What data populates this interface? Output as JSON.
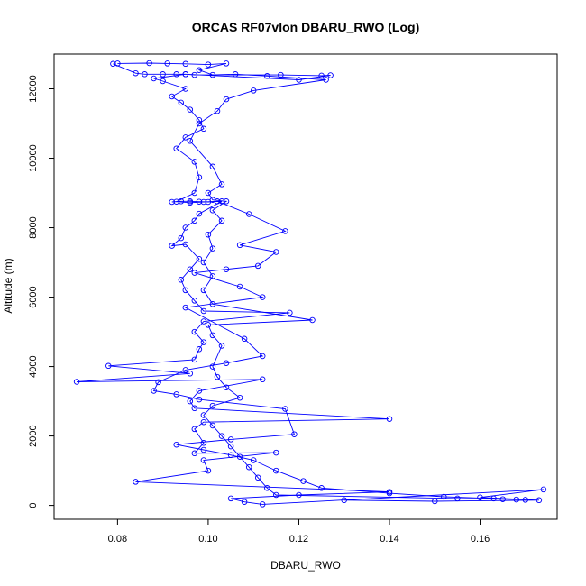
{
  "chart_data": {
    "type": "line",
    "title": "ORCAS RF07vlon DBARU_RWO (Log)",
    "xlabel": "DBARU_RWO",
    "ylabel": "Altitude (m)",
    "xlim": [
      0.066,
      0.177
    ],
    "ylim": [
      -400,
      13000
    ],
    "x_ticks": [
      "0.08",
      "0.10",
      "0.12",
      "0.14",
      "0.16"
    ],
    "y_ticks": [
      "0",
      "2000",
      "4000",
      "6000",
      "8000",
      "10000",
      "12000"
    ],
    "grid": false,
    "legend": "none",
    "marker": "open-circle",
    "series": [
      {
        "color": "#0000ff",
        "points": [
          [
            0.079,
            12720
          ],
          [
            0.084,
            12450
          ],
          [
            0.086,
            12420
          ],
          [
            0.09,
            12420
          ],
          [
            0.093,
            12420
          ],
          [
            0.095,
            12420
          ],
          [
            0.097,
            12400
          ],
          [
            0.116,
            12400
          ],
          [
            0.125,
            12380
          ],
          [
            0.127,
            12390
          ],
          [
            0.12,
            12260
          ],
          [
            0.095,
            12420
          ],
          [
            0.088,
            12300
          ],
          [
            0.09,
            12220
          ],
          [
            0.095,
            12000
          ],
          [
            0.092,
            11780
          ],
          [
            0.094,
            11600
          ],
          [
            0.096,
            11400
          ],
          [
            0.098,
            11100
          ],
          [
            0.099,
            10850
          ],
          [
            0.095,
            10600
          ],
          [
            0.093,
            10280
          ],
          [
            0.097,
            9900
          ],
          [
            0.098,
            9450
          ],
          [
            0.097,
            9000
          ],
          [
            0.093,
            8750
          ],
          [
            0.096,
            8720
          ],
          [
            0.099,
            8740
          ],
          [
            0.103,
            8760
          ],
          [
            0.098,
            8400
          ],
          [
            0.097,
            8200
          ],
          [
            0.095,
            8000
          ],
          [
            0.094,
            7700
          ],
          [
            0.092,
            7480
          ],
          [
            0.095,
            7520
          ],
          [
            0.098,
            7100
          ],
          [
            0.096,
            6800
          ],
          [
            0.094,
            6500
          ],
          [
            0.095,
            6200
          ],
          [
            0.097,
            5900
          ],
          [
            0.099,
            5600
          ],
          [
            0.118,
            5550
          ],
          [
            0.099,
            5300
          ],
          [
            0.097,
            5000
          ],
          [
            0.099,
            4700
          ],
          [
            0.098,
            4500
          ],
          [
            0.097,
            4200
          ],
          [
            0.078,
            4020
          ],
          [
            0.096,
            3800
          ],
          [
            0.071,
            3560
          ],
          [
            0.112,
            3630
          ],
          [
            0.098,
            3300
          ],
          [
            0.096,
            3000
          ],
          [
            0.097,
            2800
          ],
          [
            0.14,
            2490
          ],
          [
            0.099,
            2400
          ],
          [
            0.097,
            2200
          ],
          [
            0.099,
            1800
          ],
          [
            0.097,
            1500
          ],
          [
            0.115,
            1520
          ],
          [
            0.099,
            1300
          ],
          [
            0.1,
            1000
          ],
          [
            0.084,
            680
          ],
          [
            0.14,
            390
          ],
          [
            0.12,
            300
          ],
          [
            0.105,
            200
          ],
          [
            0.108,
            100
          ],
          [
            0.112,
            30
          ],
          [
            0.174,
            460
          ],
          [
            0.16,
            230
          ],
          [
            0.173,
            150
          ],
          [
            0.15,
            120
          ],
          [
            0.13,
            150
          ]
        ]
      },
      {
        "color": "#0000ff",
        "points": [
          [
            0.08,
            12730
          ],
          [
            0.087,
            12740
          ],
          [
            0.091,
            12730
          ],
          [
            0.095,
            12720
          ],
          [
            0.1,
            12700
          ],
          [
            0.104,
            12730
          ],
          [
            0.098,
            12540
          ],
          [
            0.101,
            12400
          ],
          [
            0.106,
            12420
          ],
          [
            0.113,
            12370
          ],
          [
            0.126,
            12260
          ],
          [
            0.11,
            11950
          ],
          [
            0.104,
            11700
          ],
          [
            0.102,
            11360
          ],
          [
            0.098,
            11000
          ],
          [
            0.096,
            10500
          ],
          [
            0.101,
            9760
          ],
          [
            0.103,
            9250
          ],
          [
            0.1,
            9000
          ],
          [
            0.101,
            8800
          ],
          [
            0.104,
            8760
          ],
          [
            0.101,
            8500
          ],
          [
            0.103,
            8200
          ],
          [
            0.1,
            7800
          ],
          [
            0.101,
            7400
          ],
          [
            0.099,
            7000
          ],
          [
            0.101,
            6600
          ],
          [
            0.099,
            6200
          ],
          [
            0.101,
            5800
          ],
          [
            0.123,
            5340
          ],
          [
            0.1,
            5200
          ],
          [
            0.101,
            4900
          ],
          [
            0.103,
            4600
          ],
          [
            0.101,
            4000
          ],
          [
            0.102,
            3700
          ],
          [
            0.104,
            3400
          ],
          [
            0.107,
            3100
          ],
          [
            0.101,
            2870
          ],
          [
            0.099,
            2600
          ],
          [
            0.101,
            2300
          ],
          [
            0.103,
            2000
          ],
          [
            0.105,
            1700
          ],
          [
            0.107,
            1400
          ],
          [
            0.109,
            1100
          ],
          [
            0.111,
            800
          ],
          [
            0.113,
            500
          ],
          [
            0.115,
            300
          ],
          [
            0.155,
            200
          ],
          [
            0.165,
            180
          ],
          [
            0.17,
            160
          ]
        ]
      },
      {
        "color": "#0000ff",
        "points": [
          [
            0.092,
            8740
          ],
          [
            0.094,
            8760
          ],
          [
            0.096,
            8760
          ],
          [
            0.098,
            8750
          ],
          [
            0.1,
            8740
          ],
          [
            0.102,
            8760
          ],
          [
            0.109,
            8390
          ],
          [
            0.117,
            7900
          ],
          [
            0.107,
            7500
          ],
          [
            0.115,
            7300
          ],
          [
            0.111,
            6900
          ],
          [
            0.104,
            6800
          ],
          [
            0.097,
            6700
          ],
          [
            0.107,
            6300
          ],
          [
            0.112,
            6000
          ],
          [
            0.095,
            5700
          ],
          [
            0.108,
            4800
          ],
          [
            0.112,
            4300
          ],
          [
            0.104,
            4100
          ],
          [
            0.095,
            3900
          ],
          [
            0.089,
            3550
          ],
          [
            0.088,
            3300
          ],
          [
            0.093,
            3200
          ],
          [
            0.098,
            3050
          ],
          [
            0.117,
            2780
          ],
          [
            0.119,
            2050
          ],
          [
            0.105,
            1900
          ],
          [
            0.093,
            1750
          ],
          [
            0.099,
            1600
          ],
          [
            0.105,
            1450
          ],
          [
            0.11,
            1300
          ],
          [
            0.115,
            1000
          ],
          [
            0.121,
            700
          ],
          [
            0.125,
            500
          ],
          [
            0.14,
            350
          ],
          [
            0.152,
            250
          ],
          [
            0.163,
            200
          ],
          [
            0.168,
            170
          ]
        ]
      }
    ]
  }
}
